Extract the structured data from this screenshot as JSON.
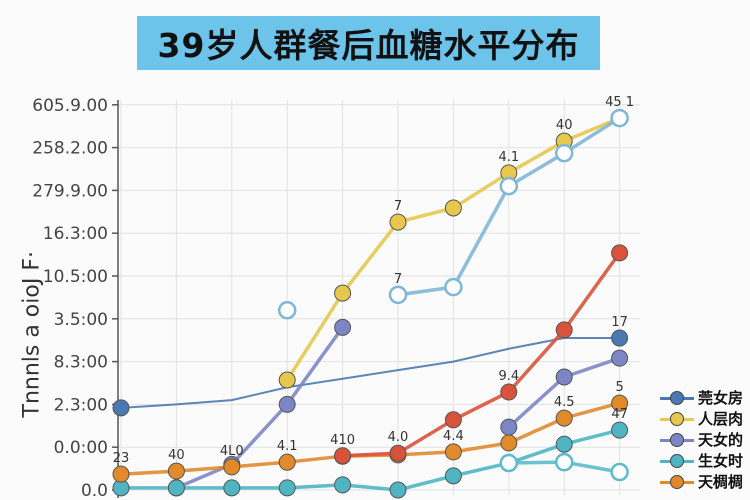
{
  "title": "39岁人群餐后血糖水平分布",
  "chart_data": {
    "type": "line",
    "title": "39岁人群餐后血糖水平分布",
    "ylabel": "Tnnnls a oioJ F·",
    "xlabel": "",
    "y_tick_labels": [
      "0.0",
      "0.0:00",
      "2.3:00",
      "8.3:00",
      "3.5:00",
      "10.5:00",
      "16.3:00",
      "279.9.00",
      "258.2.00",
      "605.9.00"
    ],
    "x_count": 10,
    "grid": true,
    "legend_position": "bottom-right",
    "series": [
      {
        "name": "莞女房",
        "color": "#4a78b0",
        "marker": "filled",
        "values": [
          1.92,
          2.0,
          2.1,
          2.4,
          2.6,
          2.8,
          3.0,
          3.3,
          3.55,
          3.55
        ]
      },
      {
        "name": "人层肉",
        "color": "#e6c84c",
        "marker": "filled",
        "values": [
          null,
          null,
          null,
          2.57,
          4.6,
          6.26,
          6.59,
          7.41,
          8.15,
          8.69
        ]
      },
      {
        "name": "天女的",
        "color": "#7d86c4",
        "marker": "filled",
        "values": [
          null,
          0.05,
          0.6,
          2.0,
          3.8,
          null,
          null,
          1.47,
          2.64,
          3.08
        ]
      },
      {
        "name": "生女时",
        "color": "#4fb5c2",
        "marker": "filled",
        "values": [
          0.05,
          0.05,
          0.05,
          0.05,
          0.12,
          0.0,
          0.33,
          0.63,
          1.07,
          1.4
        ]
      },
      {
        "name": "天椆椆",
        "color": "#e08a2c",
        "marker": "filled",
        "values": [
          0.37,
          0.44,
          0.54,
          0.65,
          0.79,
          0.82,
          0.89,
          1.1,
          1.68,
          2.03
        ]
      },
      {
        "color": "#d9533a",
        "marker": "filled",
        "values": [
          null,
          null,
          null,
          null,
          0.8,
          0.86,
          1.64,
          2.29,
          3.74,
          5.54
        ]
      },
      {
        "color": "#7fb6d8",
        "marker": "hollow",
        "values": [
          null,
          null,
          null,
          4.2,
          null,
          4.56,
          4.74,
          7.1,
          7.87,
          8.69
        ]
      },
      {
        "color": "#5bbccc",
        "marker": "hollow",
        "values": [
          null,
          null,
          null,
          null,
          null,
          null,
          null,
          0.63,
          0.65,
          0.42
        ]
      }
    ],
    "data_labels": [
      {
        "series": 4,
        "index": 0,
        "text": "23"
      },
      {
        "series": 4,
        "index": 1,
        "text": "40"
      },
      {
        "series": 4,
        "index": 2,
        "text": "4L0"
      },
      {
        "series": 4,
        "index": 3,
        "text": "4.1"
      },
      {
        "series": 5,
        "index": 4,
        "text": "410"
      },
      {
        "series": 5,
        "index": 5,
        "text": "4.0"
      },
      {
        "series": 4,
        "index": 6,
        "text": "4.4"
      },
      {
        "series": 5,
        "index": 7,
        "text": "9.4"
      },
      {
        "series": 4,
        "index": 8,
        "text": "4.5"
      },
      {
        "series": 4,
        "index": 9,
        "text": "5"
      },
      {
        "series": 3,
        "index": 9,
        "text": "47"
      },
      {
        "series": 1,
        "index": 5,
        "text": "7"
      },
      {
        "series": 1,
        "index": 7,
        "text": "4.1"
      },
      {
        "series": 1,
        "index": 8,
        "text": "40"
      },
      {
        "series": 1,
        "index": 9,
        "text": "45 1"
      },
      {
        "series": 0,
        "index": 9,
        "text": "17"
      },
      {
        "series": 6,
        "index": 5,
        "text": "7"
      }
    ]
  }
}
